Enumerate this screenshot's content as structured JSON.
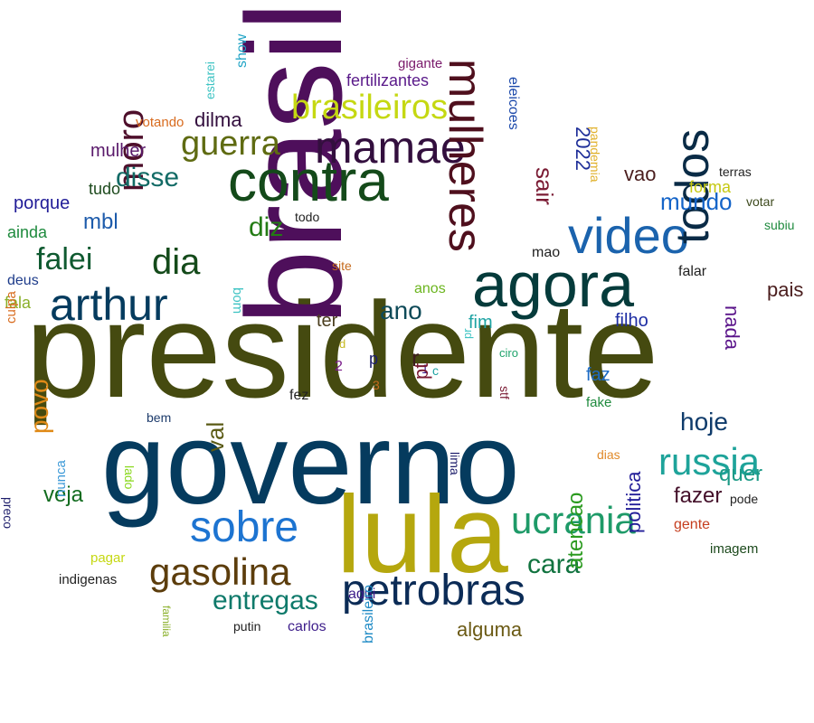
{
  "words": [
    {
      "text": "presidente",
      "color": "#454a10"
    },
    {
      "text": "governo",
      "color": "#053b5e"
    },
    {
      "text": "brasil",
      "color": "#4e0f5b"
    },
    {
      "text": "lula",
      "color": "#b5a70e"
    },
    {
      "text": "agora",
      "color": "#053b3b"
    },
    {
      "text": "contra",
      "color": "#144a1a"
    },
    {
      "text": "video",
      "color": "#1b63ad"
    },
    {
      "text": "arthur",
      "color": "#053b5e"
    },
    {
      "text": "mamae",
      "color": "#330f3e"
    },
    {
      "text": "todos",
      "color": "#0a2b46"
    },
    {
      "text": "mulheres",
      "color": "#4f0f1d"
    },
    {
      "text": "petrobras",
      "color": "#0b2b56"
    },
    {
      "text": "sobre",
      "color": "#1d74d1"
    },
    {
      "text": "ucrania",
      "color": "#1e9a68"
    },
    {
      "text": "gasolina",
      "color": "#5c3d0c"
    },
    {
      "text": "russia",
      "color": "#1ea39a"
    },
    {
      "text": "brasileiros",
      "color": "#c5d812"
    },
    {
      "text": "moro",
      "color": "#4e0f2b"
    },
    {
      "text": "guerra",
      "color": "#5f6b12"
    },
    {
      "text": "dia",
      "color": "#144a1a"
    },
    {
      "text": "falei",
      "color": "#0f5a30"
    },
    {
      "text": "disse",
      "color": "#136b66"
    },
    {
      "text": "diz",
      "color": "#237b14"
    },
    {
      "text": "ano",
      "color": "#0e4a58"
    },
    {
      "text": "entregas",
      "color": "#0f7a6b"
    },
    {
      "text": "cara",
      "color": "#11733f"
    },
    {
      "text": "hoje",
      "color": "#0f3b6b"
    },
    {
      "text": "mundo",
      "color": "#1464c8"
    },
    {
      "text": "fazer",
      "color": "#44102a"
    },
    {
      "text": "povo",
      "color": "#e08a17"
    },
    {
      "text": "veja",
      "color": "#116b1e"
    },
    {
      "text": "val",
      "color": "#5a5a14"
    },
    {
      "text": "quer",
      "color": "#1c9a86"
    },
    {
      "text": "atencao",
      "color": "#2a9a1e"
    },
    {
      "text": "politica",
      "color": "#221d98"
    },
    {
      "text": "alguma",
      "color": "#6b5a14"
    },
    {
      "text": "nada",
      "color": "#5a148a"
    },
    {
      "text": "pais",
      "color": "#4a1d1d"
    },
    {
      "text": "filho",
      "color": "#1e2da3"
    },
    {
      "text": "mbl",
      "color": "#1d5bab"
    },
    {
      "text": "vao",
      "color": "#4a1d1d"
    },
    {
      "text": "sair",
      "color": "#7a1a33"
    },
    {
      "text": "2022",
      "color": "#1d2d98"
    },
    {
      "text": "forma",
      "color": "#c5c812"
    },
    {
      "text": "dilma",
      "color": "#330f3e"
    },
    {
      "text": "mulher",
      "color": "#5a1a6b"
    },
    {
      "text": "porque",
      "color": "#221d98"
    },
    {
      "text": "tudo",
      "color": "#1d4a1d"
    },
    {
      "text": "ainda",
      "color": "#1e8a3d"
    },
    {
      "text": "deus",
      "color": "#1d3b8a"
    },
    {
      "text": "fala",
      "color": "#8ab02a"
    },
    {
      "text": "culpa",
      "color": "#d86b1e"
    },
    {
      "text": "ter",
      "color": "#4a3d1d"
    },
    {
      "text": "fim",
      "color": "#1ea3a3"
    },
    {
      "text": "anos",
      "color": "#6bb51e"
    },
    {
      "text": "mao",
      "color": "#222222"
    },
    {
      "text": "falar",
      "color": "#222222"
    },
    {
      "text": "site",
      "color": "#c56b1e"
    },
    {
      "text": "todo",
      "color": "#222222"
    },
    {
      "text": "bom",
      "color": "#3dc3c3"
    },
    {
      "text": "votando",
      "color": "#d86b1e"
    },
    {
      "text": "estarei",
      "color": "#3dc3c3"
    },
    {
      "text": "show",
      "color": "#1ea3c5"
    },
    {
      "text": "fertilizantes",
      "color": "#5a1a8a"
    },
    {
      "text": "gigante",
      "color": "#7a1a6b"
    },
    {
      "text": "eleicoes",
      "color": "#1d4aab"
    },
    {
      "text": "pandemia",
      "color": "#e0b02a"
    },
    {
      "text": "terras",
      "color": "#222222"
    },
    {
      "text": "votar",
      "color": "#3d4a1d"
    },
    {
      "text": "subiu",
      "color": "#1e8a3d"
    },
    {
      "text": "pr",
      "color": "#3dc3c3"
    },
    {
      "text": "ciro",
      "color": "#1ea36b"
    },
    {
      "text": "stf",
      "color": "#7a1a33"
    },
    {
      "text": "faz",
      "color": "#1d6bc5"
    },
    {
      "text": "fake",
      "color": "#1e8a3d"
    },
    {
      "text": "fez",
      "color": "#222222"
    },
    {
      "text": "bem",
      "color": "#1d3b6b"
    },
    {
      "text": "lado",
      "color": "#8ad81e"
    },
    {
      "text": "dias",
      "color": "#e08a2a"
    },
    {
      "text": "lima",
      "color": "#1d1d6b"
    },
    {
      "text": "pode",
      "color": "#222222"
    },
    {
      "text": "gente",
      "color": "#c53d1e"
    },
    {
      "text": "imagem",
      "color": "#1d4a1d"
    },
    {
      "text": "preco",
      "color": "#1d1d6b"
    },
    {
      "text": "nunca",
      "color": "#3d9ad8"
    },
    {
      "text": "pagar",
      "color": "#c5d812"
    },
    {
      "text": "indigenas",
      "color": "#222222"
    },
    {
      "text": "familia",
      "color": "#8ab02a"
    },
    {
      "text": "putin",
      "color": "#222222"
    },
    {
      "text": "carlos",
      "color": "#3d1d8a"
    },
    {
      "text": "aqui",
      "color": "#3d1d8a"
    },
    {
      "text": "brasileiro",
      "color": "#1e8ac5"
    },
    {
      "text": "d",
      "color": "#c5b81e"
    },
    {
      "text": "2",
      "color": "#7a1a8a"
    },
    {
      "text": "p",
      "color": "#1d1d6b"
    },
    {
      "text": "r",
      "color": "#3d1d1d"
    },
    {
      "text": "1",
      "color": "#3d1d8a"
    },
    {
      "text": "c",
      "color": "#1ea3a3"
    },
    {
      "text": "3",
      "color": "#c56b1e"
    },
    {
      "text": "pt",
      "color": "#7a1a33"
    }
  ]
}
